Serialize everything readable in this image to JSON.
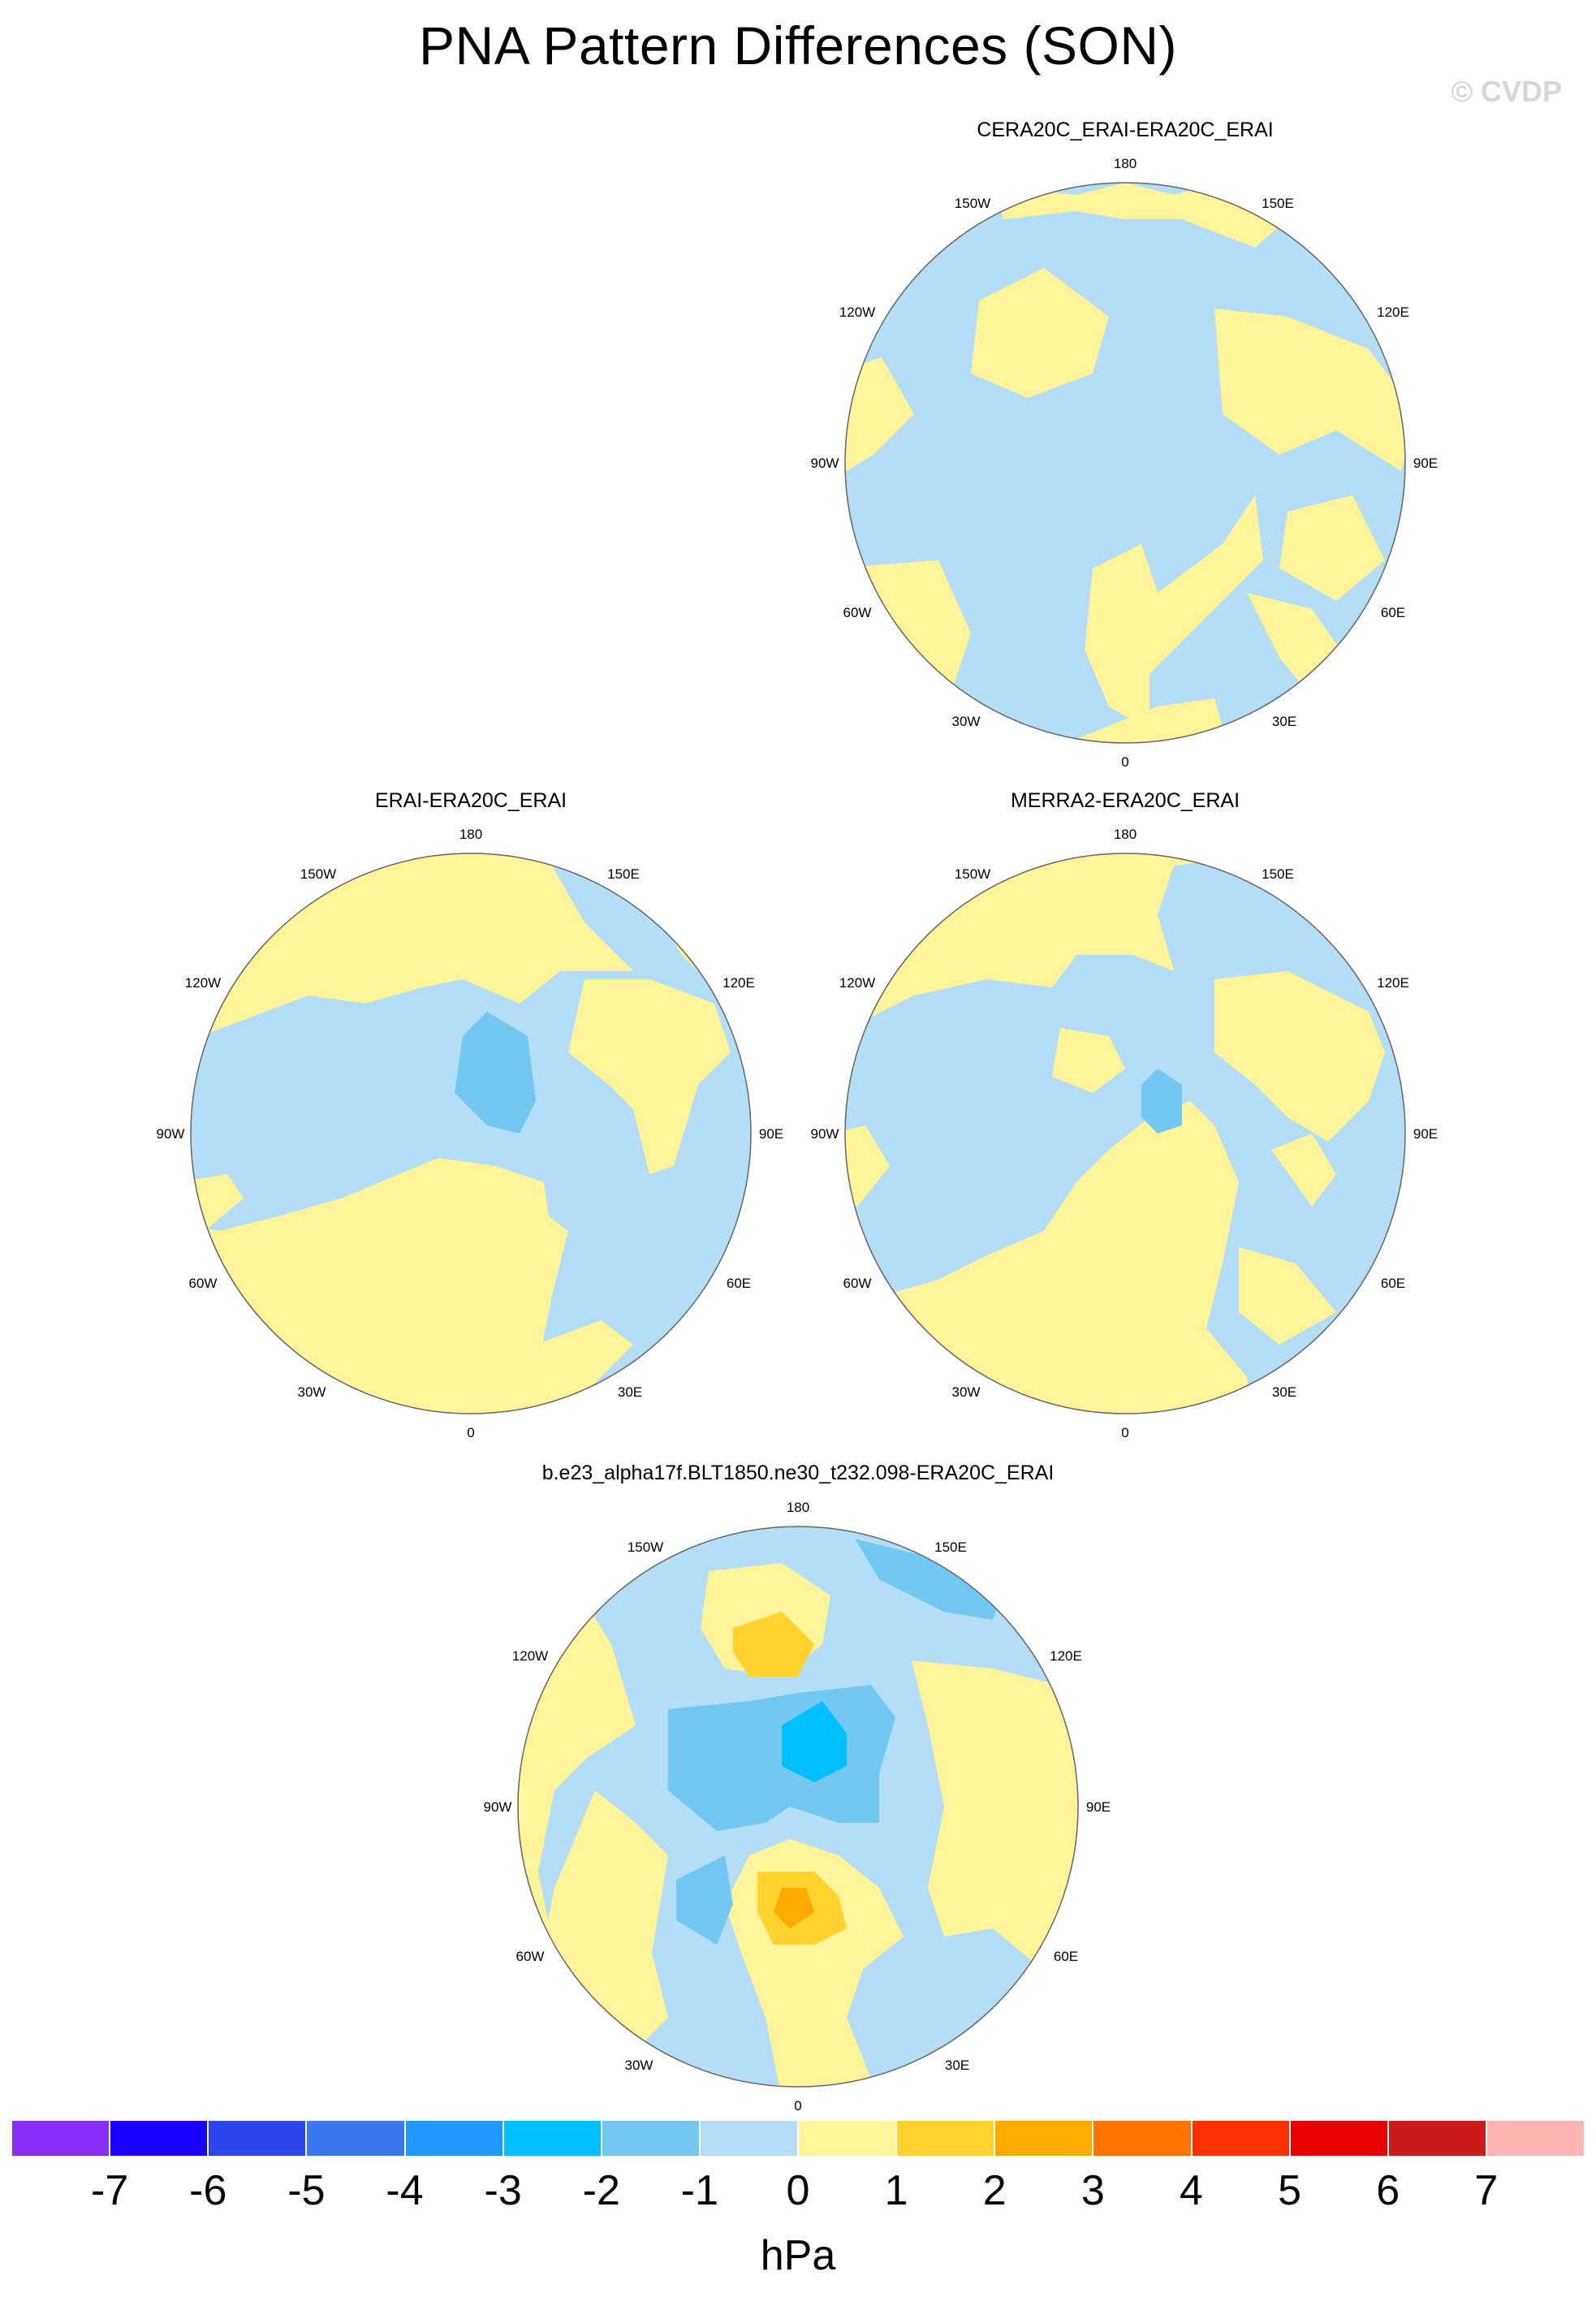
{
  "figure": {
    "title": "PNA Pattern Differences (SON)",
    "watermark": "© CVDP"
  },
  "panels": [
    {
      "title": "CERA20C_ERAI-ERA20C_ERAI"
    },
    {
      "title": "ERAI-ERA20C_ERAI"
    },
    {
      "title": "MERRA2-ERA20C_ERAI"
    },
    {
      "title": "b.e23_alpha17f.BLT1850.ne30_t232.098-ERA20C_ERAI"
    }
  ],
  "longitude_labels": [
    "180",
    "150E",
    "120E",
    "90E",
    "60E",
    "30E",
    "0",
    "30W",
    "60W",
    "90W",
    "120W",
    "150W"
  ],
  "colorbar": {
    "units": "hPa",
    "labels": [
      "-7",
      "-6",
      "-5",
      "-4",
      "-3",
      "-2",
      "-1",
      "0",
      "1",
      "2",
      "3",
      "4",
      "5",
      "6",
      "7"
    ],
    "colors": [
      "#8a2ef5",
      "#1a00ff",
      "#2e46ee",
      "#3b78ef",
      "#1f98ff",
      "#00c0ff",
      "#73c8f2",
      "#b3def5",
      "#fff49a",
      "#ffd22e",
      "#ffaa00",
      "#ff7400",
      "#ff2f00",
      "#e60000",
      "#cc1b1b",
      "#ffb3b3"
    ]
  },
  "legend_colors": {
    "neg_-3": "#00c0ff",
    "neg_-2": "#73c8f2",
    "neg_-1": "#b3def5",
    "pos_1": "#fff49a",
    "pos_2": "#ffd22e",
    "pos_3": "#ffaa00"
  }
}
